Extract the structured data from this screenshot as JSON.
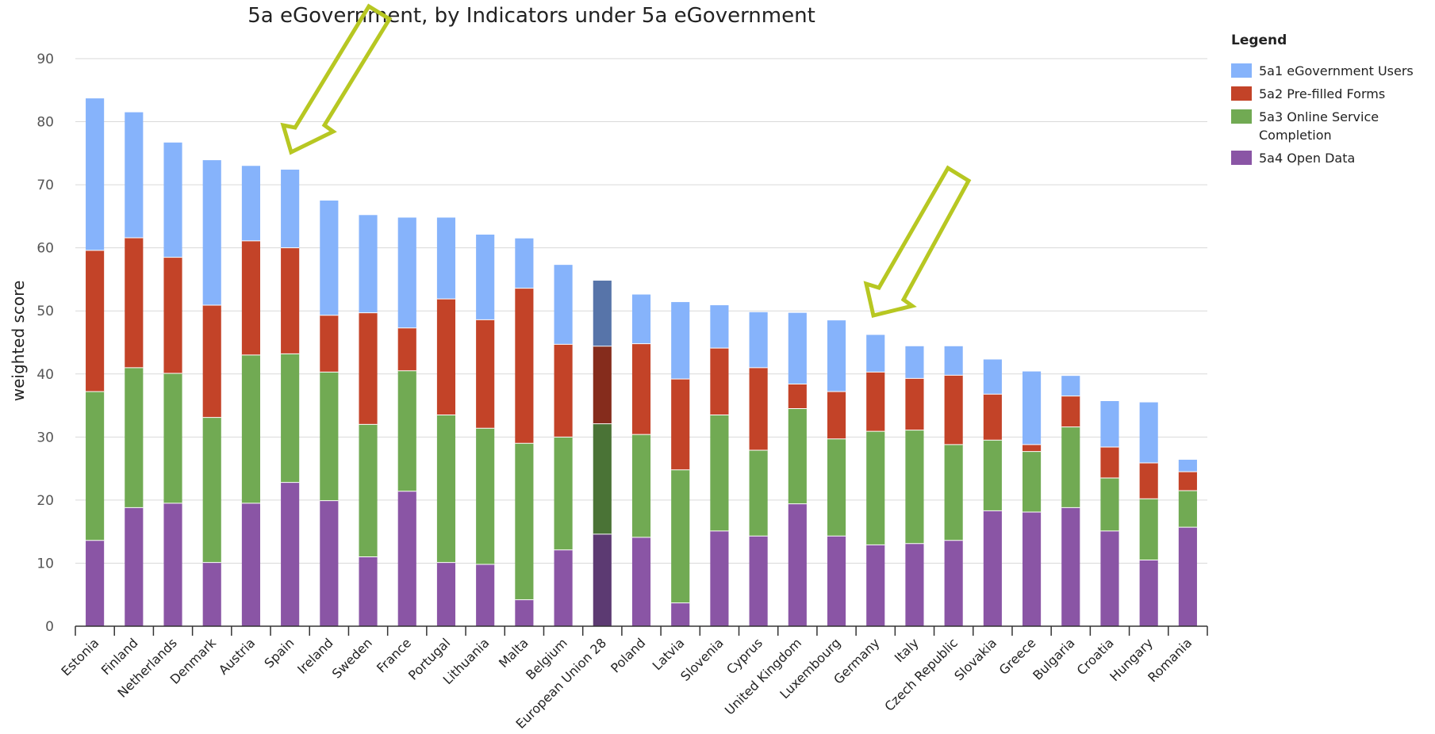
{
  "chart_data": {
    "type": "bar",
    "stacked": true,
    "title": "5a eGovernment, by Indicators under 5a eGovernment",
    "ylabel": "weighted score",
    "xlabel": "",
    "ylim": [
      0,
      90
    ],
    "yticks": [
      0,
      10,
      20,
      30,
      40,
      50,
      60,
      70,
      80,
      90
    ],
    "grid": true,
    "legend_title": "Legend",
    "legend_position": "top-right",
    "categories": [
      "Estonia",
      "Finland",
      "Netherlands",
      "Denmark",
      "Austria",
      "Spain",
      "Ireland",
      "Sweden",
      "France",
      "Portugal",
      "Lithuania",
      "Malta",
      "Belgium",
      "European Union 28",
      "Poland",
      "Latvia",
      "Slovenia",
      "Cyprus",
      "United Kingdom",
      "Luxembourg",
      "Germany",
      "Italy",
      "Czech Republic",
      "Slovakia",
      "Greece",
      "Bulgaria",
      "Croatia",
      "Hungary",
      "Romania"
    ],
    "highlight_category": "European Union 28",
    "series": [
      {
        "name": "5a4 Open Data",
        "color": "#8a55a5",
        "highlight_color": "#5c3a72",
        "values": [
          13.6,
          18.8,
          19.5,
          10.1,
          19.5,
          22.8,
          19.9,
          11.0,
          21.4,
          10.1,
          9.8,
          4.2,
          12.1,
          14.6,
          14.1,
          3.7,
          15.1,
          14.3,
          19.4,
          14.3,
          12.9,
          13.1,
          13.6,
          18.3,
          18.1,
          18.8,
          15.1,
          10.5,
          15.7
        ]
      },
      {
        "name": "5a3 Online Service\nCompletion",
        "color": "#71aa53",
        "highlight_color": "#4a7336",
        "values": [
          23.6,
          22.2,
          20.6,
          23.0,
          23.5,
          20.4,
          20.4,
          21.0,
          19.1,
          23.4,
          21.6,
          24.8,
          17.9,
          17.5,
          16.3,
          21.1,
          18.4,
          13.6,
          15.1,
          15.4,
          18.0,
          18.0,
          15.2,
          11.2,
          9.6,
          12.8,
          8.4,
          9.7,
          5.8
        ]
      },
      {
        "name": "5a2 Pre-filled Forms",
        "color": "#c34328",
        "highlight_color": "#852c1c",
        "values": [
          22.4,
          20.6,
          18.4,
          17.8,
          18.1,
          16.8,
          9.0,
          17.7,
          6.8,
          18.4,
          17.2,
          24.6,
          14.7,
          12.3,
          14.4,
          14.4,
          10.6,
          13.1,
          3.9,
          7.5,
          9.4,
          8.2,
          11.0,
          7.3,
          1.1,
          4.9,
          4.9,
          5.7,
          3.0
        ]
      },
      {
        "name": "5a1 eGovernment Users",
        "color": "#86b3fb",
        "highlight_color": "#5774a9",
        "values": [
          24.1,
          19.9,
          18.2,
          23.0,
          11.9,
          12.4,
          18.2,
          15.5,
          17.5,
          12.9,
          13.5,
          7.9,
          12.6,
          10.4,
          7.8,
          12.2,
          6.8,
          8.8,
          11.3,
          11.3,
          5.9,
          5.1,
          4.6,
          5.5,
          11.6,
          3.2,
          7.3,
          9.6,
          1.9
        ]
      }
    ]
  }
}
